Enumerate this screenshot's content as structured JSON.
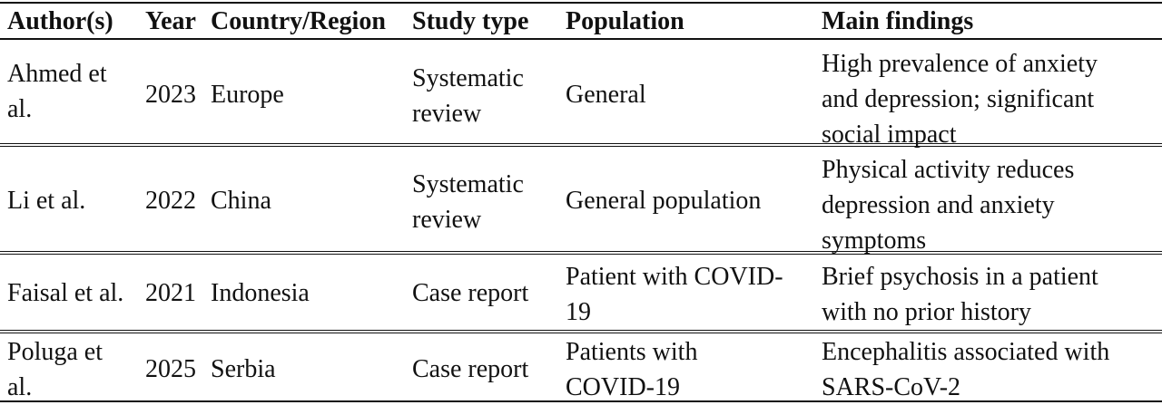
{
  "table": {
    "headers": {
      "author": "Author(s)",
      "year": "Year",
      "country": "Country/Region",
      "type": "Study type",
      "population": "Population",
      "findings": "Main findings"
    },
    "rows": [
      {
        "author": [
          "Ahmed et",
          "al."
        ],
        "year": "2023",
        "country": "Europe",
        "type": [
          "Systematic",
          "review"
        ],
        "population": [
          "General"
        ],
        "findings": [
          "High prevalence of anxiety",
          "and depression; significant",
          "social impact"
        ]
      },
      {
        "author": [
          "Li et al."
        ],
        "year": "2022",
        "country": "China",
        "type": [
          "Systematic",
          "review"
        ],
        "population": [
          "General population"
        ],
        "findings": [
          "Physical activity reduces",
          "depression and anxiety",
          "symptoms"
        ]
      },
      {
        "author": [
          "Faisal et al."
        ],
        "year": "2021",
        "country": "Indonesia",
        "type": [
          "Case report"
        ],
        "population": [
          "Patient with COVID-",
          "19"
        ],
        "findings": [
          "Brief psychosis in a patient",
          "with no prior history"
        ]
      },
      {
        "author": [
          "Poluga et",
          "al."
        ],
        "year": "2025",
        "country": "Serbia",
        "type": [
          "Case report"
        ],
        "population": [
          "Patients with",
          "COVID-19"
        ],
        "findings": [
          "Encephalitis associated with",
          "SARS-CoV-2"
        ]
      }
    ]
  }
}
